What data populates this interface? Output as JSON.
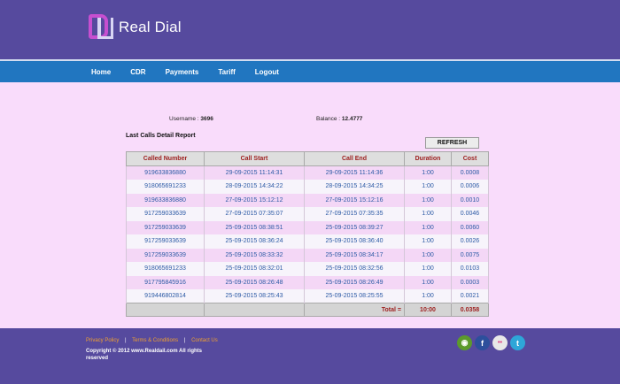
{
  "header": {
    "brand": "Real Dial"
  },
  "nav": {
    "items": [
      "Home",
      "CDR",
      "Payments",
      "Tariff",
      "Logout"
    ]
  },
  "account": {
    "username_label": "Username :",
    "username": "3696",
    "balance_label": "Balance :",
    "balance": "12.4777"
  },
  "report": {
    "title": "Last Calls Detail Report",
    "refresh_label": "REFRESH",
    "columns": [
      "Called Number",
      "Call Start",
      "Call End",
      "Duration",
      "Cost"
    ],
    "rows": [
      [
        "919633836880",
        "29-09-2015 11:14:31",
        "29-09-2015 11:14:36",
        "1:00",
        "0.0008"
      ],
      [
        "918065691233",
        "28-09-2015 14:34:22",
        "28-09-2015 14:34:25",
        "1:00",
        "0.0006"
      ],
      [
        "919633836880",
        "27-09-2015 15:12:12",
        "27-09-2015 15:12:16",
        "1:00",
        "0.0010"
      ],
      [
        "917259033639",
        "27-09-2015 07:35:07",
        "27-09-2015 07:35:35",
        "1:00",
        "0.0046"
      ],
      [
        "917259033639",
        "25-09-2015 08:38:51",
        "25-09-2015 08:39:27",
        "1:00",
        "0.0060"
      ],
      [
        "917259033639",
        "25-09-2015 08:36:24",
        "25-09-2015 08:36:40",
        "1:00",
        "0.0026"
      ],
      [
        "917259033639",
        "25-09-2015 08:33:32",
        "25-09-2015 08:34:17",
        "1:00",
        "0.0075"
      ],
      [
        "918065691233",
        "25-09-2015 08:32:01",
        "25-09-2015 08:32:56",
        "1:00",
        "0.0103"
      ],
      [
        "917795845916",
        "25-09-2015 08:26:48",
        "25-09-2015 08:26:49",
        "1:00",
        "0.0003"
      ],
      [
        "919446802814",
        "25-09-2015 08:25:43",
        "25-09-2015 08:25:55",
        "1:00",
        "0.0021"
      ]
    ],
    "total_label": "Total =",
    "total_duration": "10:00",
    "total_cost": "0.0358"
  },
  "footer": {
    "privacy": "Privacy Policy",
    "terms": "Terms & Conditions",
    "contact": "Contact Us",
    "separator": "|",
    "copyright": "Copyright © 2012 www.Realdail.com All rights reserved"
  },
  "social": [
    {
      "icon": "rss-icon",
      "glyph": "◉",
      "color": "#5c9a2c"
    },
    {
      "icon": "facebook-icon",
      "glyph": "f",
      "color": "#2d4f9c"
    },
    {
      "icon": "flickr-icon",
      "glyph": "••",
      "color": "#e8e8e8"
    },
    {
      "icon": "twitter-icon",
      "glyph": "t",
      "color": "#2ea6d8"
    }
  ]
}
